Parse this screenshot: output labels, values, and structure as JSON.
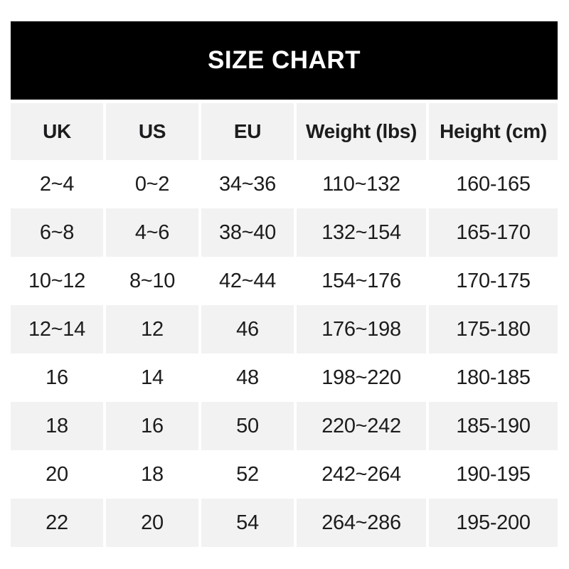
{
  "colors": {
    "banner_bg": "#000000",
    "banner_text": "#ffffff",
    "header_bg": "#f2f2f2",
    "row_bg": "#ffffff",
    "row_alt_bg": "#f2f2f2",
    "cell_text": "#1c1c1e",
    "page_bg": "#ffffff"
  },
  "chart_data": {
    "type": "table",
    "title": "SIZE CHART",
    "columns": [
      "UK",
      "US",
      "EU",
      "Weight (lbs)",
      "Height (cm)"
    ],
    "rows": [
      [
        "2~4",
        "0~2",
        "34~36",
        "110~132",
        "160-165"
      ],
      [
        "6~8",
        "4~6",
        "38~40",
        "132~154",
        "165-170"
      ],
      [
        "10~12",
        "8~10",
        "42~44",
        "154~176",
        "170-175"
      ],
      [
        "12~14",
        "12",
        "46",
        "176~198",
        "175-180"
      ],
      [
        "16",
        "14",
        "48",
        "198~220",
        "180-185"
      ],
      [
        "18",
        "16",
        "50",
        "220~242",
        "185-190"
      ],
      [
        "20",
        "18",
        "52",
        "242~264",
        "190-195"
      ],
      [
        "22",
        "20",
        "54",
        "264~286",
        "195-200"
      ]
    ],
    "layout": {
      "alternating_row_shading": true,
      "range_separator_weight": "~",
      "range_separator_height": "-"
    }
  }
}
